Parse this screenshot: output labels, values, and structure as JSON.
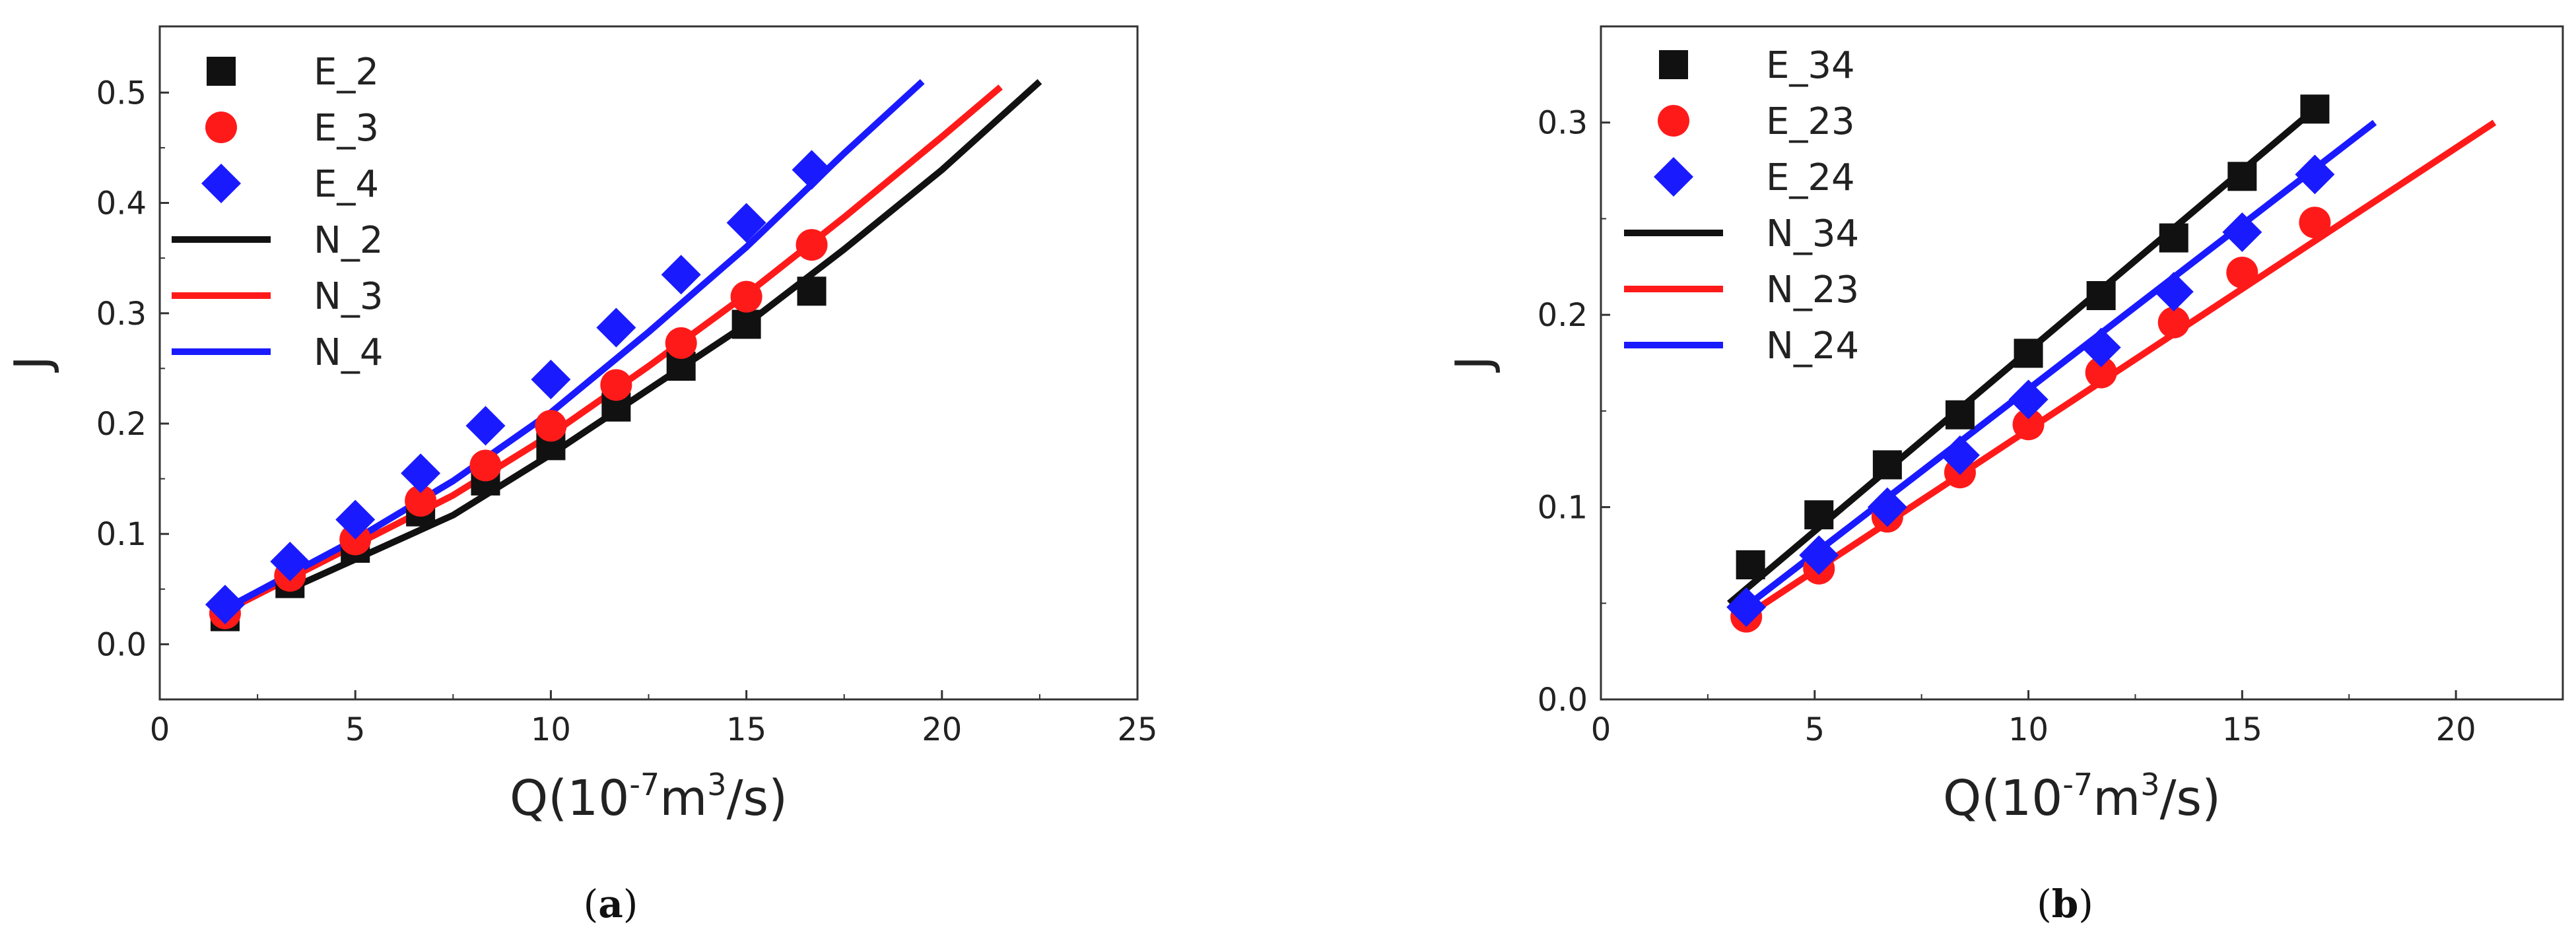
{
  "colors": {
    "black": "#111111",
    "red": "#ff1a1a",
    "blue": "#1a1aff"
  },
  "chart_data": [
    {
      "type": "scatter",
      "caption_letter": "a",
      "xlabel_main": "Q(10",
      "xlabel_exp": "-7",
      "xlabel_unit": "m",
      "xlabel_exp2": "3",
      "xlabel_tail": "/s)",
      "ylabel": "J",
      "xlim": [
        0,
        25
      ],
      "ylim": [
        -0.05,
        0.56
      ],
      "xticks": [
        0,
        5,
        10,
        15,
        20,
        25
      ],
      "yticks": [
        0.0,
        0.1,
        0.2,
        0.3,
        0.4,
        0.5
      ],
      "x_tick_labels": [
        "0",
        "5",
        "10",
        "15",
        "20",
        "25"
      ],
      "y_tick_labels": [
        "0.0",
        "0.1",
        "0.2",
        "0.3",
        "0.4",
        "0.5"
      ],
      "legend_position": "top-left",
      "series": [
        {
          "name": "E_2",
          "kind": "marker",
          "marker": "square",
          "color": "#111111",
          "x": [
            1.67,
            3.33,
            5.0,
            6.67,
            8.33,
            10.0,
            11.67,
            13.33,
            15.0,
            16.67
          ],
          "y": [
            0.025,
            0.055,
            0.087,
            0.12,
            0.148,
            0.18,
            0.215,
            0.252,
            0.29,
            0.32
          ]
        },
        {
          "name": "E_3",
          "kind": "marker",
          "marker": "circle",
          "color": "#ff1a1a",
          "x": [
            1.67,
            3.33,
            5.0,
            6.67,
            8.33,
            10.0,
            11.67,
            13.33,
            15.0,
            16.67
          ],
          "y": [
            0.028,
            0.062,
            0.095,
            0.13,
            0.162,
            0.198,
            0.235,
            0.273,
            0.315,
            0.362
          ]
        },
        {
          "name": "E_4",
          "kind": "marker",
          "marker": "diamond",
          "color": "#1a1aff",
          "x": [
            1.67,
            3.33,
            5.0,
            6.67,
            8.33,
            10.0,
            11.67,
            13.33,
            15.0,
            16.67
          ],
          "y": [
            0.036,
            0.075,
            0.113,
            0.155,
            0.198,
            0.24,
            0.287,
            0.335,
            0.382,
            0.43
          ]
        },
        {
          "name": "N_2",
          "kind": "line",
          "color": "#111111",
          "x": [
            3.0,
            5.0,
            7.5,
            10.0,
            12.5,
            15.0,
            17.5,
            20.0,
            22.5
          ],
          "y": [
            0.045,
            0.077,
            0.117,
            0.172,
            0.231,
            0.29,
            0.358,
            0.43,
            0.51
          ]
        },
        {
          "name": "N_3",
          "kind": "line",
          "color": "#ff1a1a",
          "x": [
            1.67,
            5.0,
            7.5,
            10.0,
            12.5,
            15.0,
            17.5,
            20.0,
            21.5
          ],
          "y": [
            0.03,
            0.09,
            0.135,
            0.19,
            0.252,
            0.317,
            0.387,
            0.46,
            0.505
          ]
        },
        {
          "name": "N_4",
          "kind": "line",
          "color": "#1a1aff",
          "x": [
            1.67,
            5.0,
            7.5,
            10.0,
            12.5,
            15.0,
            17.5,
            19.5
          ],
          "y": [
            0.032,
            0.095,
            0.148,
            0.21,
            0.283,
            0.36,
            0.445,
            0.51
          ]
        }
      ]
    },
    {
      "type": "scatter",
      "caption_letter": "b",
      "xlabel_main": "Q(10",
      "xlabel_exp": "-7",
      "xlabel_unit": "m",
      "xlabel_exp2": "3",
      "xlabel_tail": "/s)",
      "ylabel": "J",
      "xlim": [
        0,
        22.5
      ],
      "ylim": [
        0.0,
        0.35
      ],
      "xticks": [
        0,
        5,
        10,
        15,
        20
      ],
      "yticks": [
        0.0,
        0.1,
        0.2,
        0.3
      ],
      "x_tick_labels": [
        "0",
        "5",
        "10",
        "15",
        "20"
      ],
      "y_tick_labels": [
        "0.0",
        "0.1",
        "0.2",
        "0.3"
      ],
      "legend_position": "top-left",
      "series": [
        {
          "name": "E_34",
          "kind": "marker",
          "marker": "square",
          "color": "#111111",
          "x": [
            3.5,
            5.1,
            6.7,
            8.4,
            10.0,
            11.7,
            13.4,
            15.0,
            16.7
          ],
          "y": [
            0.07,
            0.096,
            0.122,
            0.148,
            0.18,
            0.21,
            0.24,
            0.272,
            0.307
          ]
        },
        {
          "name": "E_23",
          "kind": "marker",
          "marker": "circle",
          "color": "#ff1a1a",
          "x": [
            3.4,
            5.1,
            6.7,
            8.4,
            10.0,
            11.7,
            13.4,
            15.0,
            16.7
          ],
          "y": [
            0.043,
            0.068,
            0.095,
            0.118,
            0.143,
            0.17,
            0.196,
            0.222,
            0.248
          ]
        },
        {
          "name": "E_24",
          "kind": "marker",
          "marker": "diamond",
          "color": "#1a1aff",
          "x": [
            3.4,
            5.1,
            6.7,
            8.4,
            10.0,
            11.7,
            13.4,
            15.0,
            16.7
          ],
          "y": [
            0.048,
            0.075,
            0.1,
            0.127,
            0.156,
            0.183,
            0.212,
            0.243,
            0.273
          ]
        },
        {
          "name": "N_34",
          "kind": "line",
          "color": "#111111",
          "x": [
            3.0,
            16.7
          ],
          "y": [
            0.05,
            0.307
          ]
        },
        {
          "name": "N_23",
          "kind": "line",
          "color": "#ff1a1a",
          "x": [
            3.5,
            20.9
          ],
          "y": [
            0.045,
            0.3
          ]
        },
        {
          "name": "N_24",
          "kind": "line",
          "color": "#1a1aff",
          "x": [
            3.2,
            18.1
          ],
          "y": [
            0.045,
            0.3
          ]
        }
      ]
    }
  ]
}
